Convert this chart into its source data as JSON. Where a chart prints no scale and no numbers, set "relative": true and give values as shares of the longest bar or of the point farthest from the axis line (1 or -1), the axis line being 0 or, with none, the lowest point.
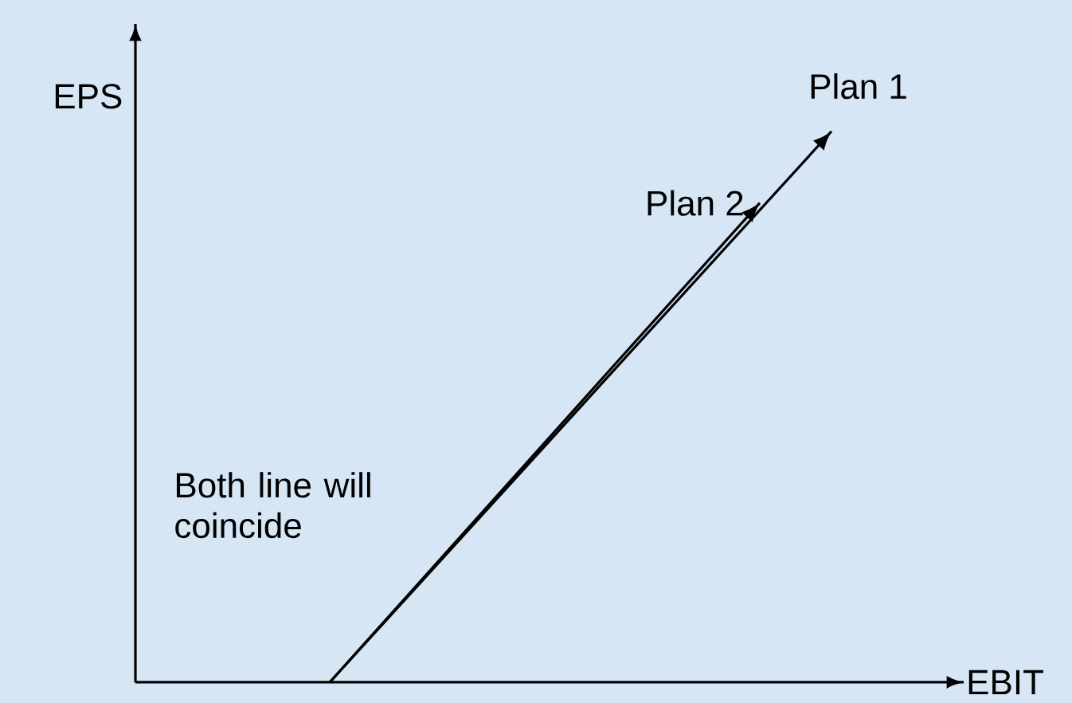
{
  "chart_data": {
    "type": "line",
    "relative": true,
    "xlabel": "EBIT",
    "ylabel": "EPS",
    "categories": [
      null,
      null,
      null,
      null,
      null,
      null,
      null,
      null
    ],
    "series": [
      {
        "name": "Plan 1",
        "color": "#000000",
        "values": [
          0,
          null,
          null,
          null,
          null,
          null,
          null,
          1
        ]
      },
      {
        "name": "Plan 2",
        "color": "#000000",
        "values": [
          0,
          null,
          null,
          null,
          null,
          null,
          0.87,
          null
        ]
      }
    ],
    "annotations": [
      "Both line will coincide"
    ]
  }
}
